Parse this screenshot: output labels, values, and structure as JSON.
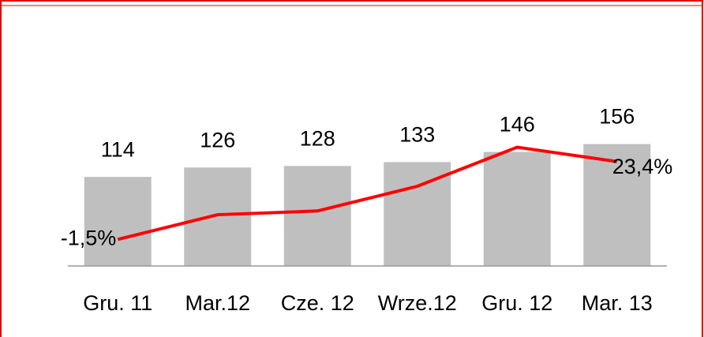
{
  "chart_data": {
    "type": "bar",
    "categories": [
      "Gru. 11",
      "Mar.12",
      "Cze. 12",
      "Wrze.12",
      "Gru. 12",
      "Mar. 13"
    ],
    "series": [
      {
        "type": "bar",
        "color": "#bfbfbf",
        "values": [
          114,
          126,
          128,
          133,
          146,
          156
        ]
      },
      {
        "type": "line",
        "color": "#ff0000",
        "axis": "y2",
        "values": [
          -1.5,
          6.4,
          7.6,
          15.5,
          28.0,
          23.4
        ],
        "value_labels": [
          "-1,5%",
          null,
          null,
          null,
          null,
          "23,4%"
        ]
      }
    ],
    "ylim": [
      0,
      200
    ],
    "y2lim": [
      -10,
      40
    ],
    "grid": false
  }
}
